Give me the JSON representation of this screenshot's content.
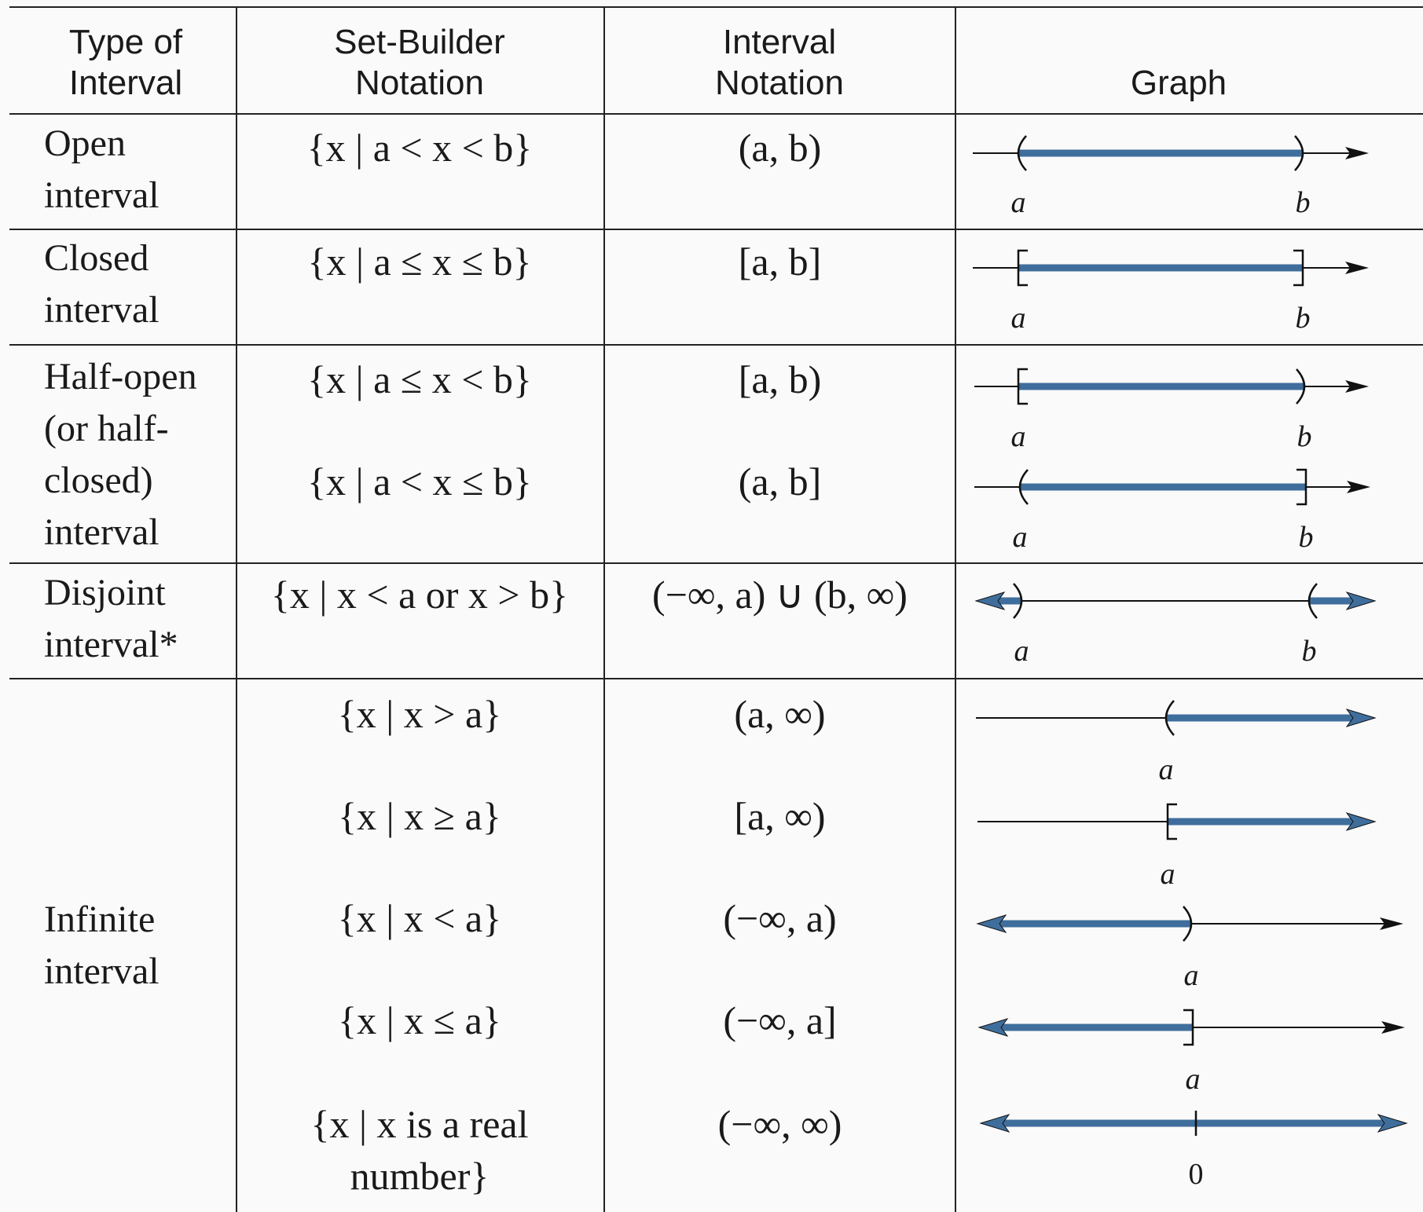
{
  "headers": {
    "type": "Type of\nInterval",
    "set_builder": "Set-Builder\nNotation",
    "interval": "Interval\nNotation",
    "graph": "Graph"
  },
  "rows": [
    {
      "type": "Open\ninterval",
      "set_builder": "{x | a < x < b}",
      "interval": "(a, b)",
      "graph": {
        "left_end": "(",
        "right_end": ")",
        "labels": [
          "a",
          "b"
        ]
      }
    },
    {
      "type": "Closed\ninterval",
      "set_builder": "{x | a ≤ x ≤ b}",
      "interval": "[a, b]",
      "graph": {
        "left_end": "[",
        "right_end": "]",
        "labels": [
          "a",
          "b"
        ]
      }
    },
    {
      "type": "Half-open\n(or half-\nclosed)\ninterval",
      "entries": [
        {
          "set_builder": "{x | a ≤ x < b}",
          "interval": "[a, b)",
          "graph": {
            "left_end": "[",
            "right_end": ")",
            "labels": [
              "a",
              "b"
            ]
          }
        },
        {
          "set_builder": "{x | a < x ≤ b}",
          "interval": "(a, b]",
          "graph": {
            "left_end": "(",
            "right_end": "]",
            "labels": [
              "a",
              "b"
            ]
          }
        }
      ]
    },
    {
      "type": "Disjoint\ninterval*",
      "set_builder": "{x | x < a or x > b}",
      "interval": "(−∞, a) ∪ (b, ∞)",
      "graph": {
        "shaded": "outside",
        "left_end": ")",
        "right_end": "(",
        "labels": [
          "a",
          "b"
        ]
      }
    },
    {
      "type": "Infinite\ninterval",
      "entries": [
        {
          "set_builder": "{x | x > a}",
          "interval": "(a, ∞)",
          "graph": {
            "shaded": "right",
            "end": "(",
            "labels": [
              "a"
            ]
          }
        },
        {
          "set_builder": "{x | x ≥ a}",
          "interval": "[a, ∞)",
          "graph": {
            "shaded": "right",
            "end": "[",
            "labels": [
              "a"
            ]
          }
        },
        {
          "set_builder": "{x | x < a}",
          "interval": "(−∞, a)",
          "graph": {
            "shaded": "left",
            "end": ")",
            "labels": [
              "a"
            ]
          }
        },
        {
          "set_builder": "{x | x ≤ a}",
          "interval": "(−∞, a]",
          "graph": {
            "shaded": "left",
            "end": "]",
            "labels": [
              "a"
            ]
          }
        },
        {
          "set_builder": "{x | x is a real\nnumber}",
          "interval": "(−∞, ∞)",
          "graph": {
            "shaded": "all",
            "tick": "0",
            "labels": [
              "0"
            ]
          }
        }
      ]
    }
  ],
  "colors": {
    "shade": "#3f6e9c",
    "line": "#111111",
    "rule": "#222222"
  }
}
